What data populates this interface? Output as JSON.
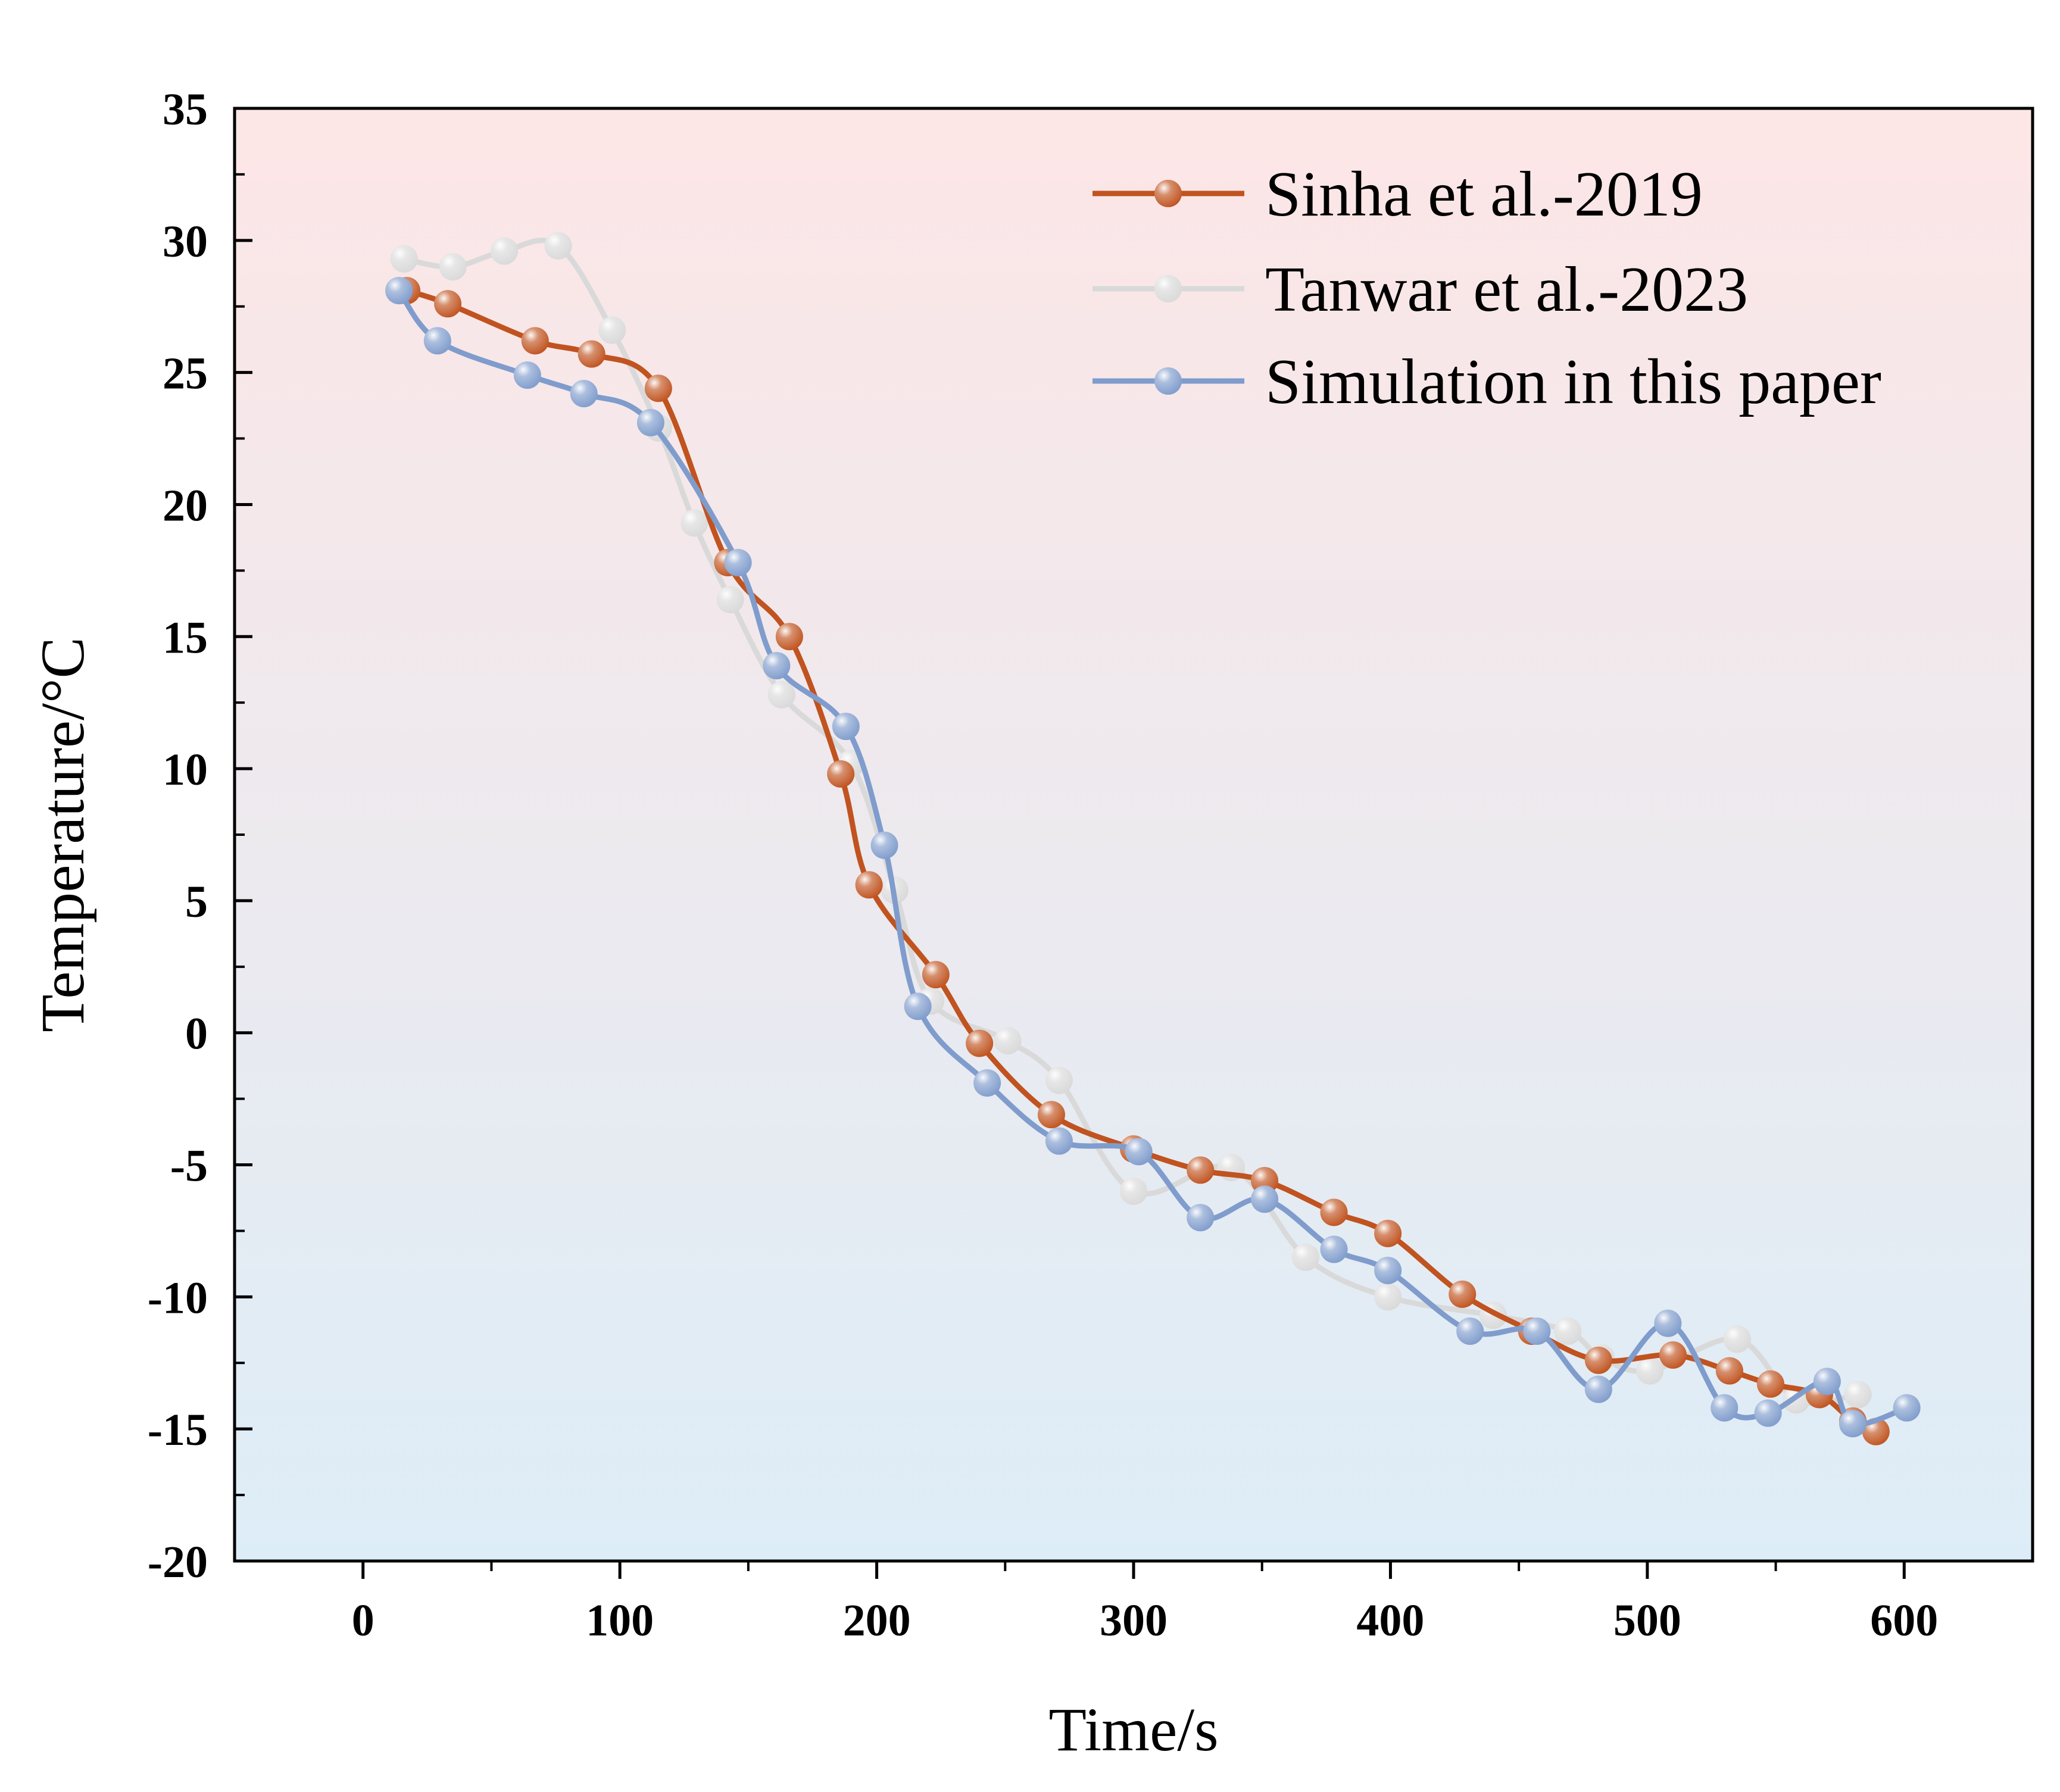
{
  "chart_data": {
    "type": "line",
    "title": "",
    "xlabel": "Time/s",
    "ylabel": "Temperature/°C",
    "xlim": [
      -50,
      650
    ],
    "ylim": [
      -20,
      35
    ],
    "xticks": [
      0,
      100,
      200,
      300,
      400,
      500,
      600
    ],
    "xtick_labels": [
      "0",
      "100",
      "200",
      "300",
      "400",
      "500",
      "600"
    ],
    "yticks": [
      35,
      30,
      25,
      20,
      15,
      10,
      5,
      0,
      -5,
      -10,
      -15,
      -20
    ],
    "ytick_labels": [
      "35",
      "30",
      "25",
      "20",
      "15",
      "10",
      "5",
      "0",
      "-5",
      "-10",
      "-15",
      "-20"
    ],
    "grid": false,
    "legend_position": "top-right",
    "background_gradient": [
      "#fde6e6",
      "#ddedf7"
    ],
    "series": [
      {
        "name": "Sinha et al.-2019",
        "color": "#c0531f",
        "x": [
          17,
          33,
          67,
          89,
          115,
          142,
          166,
          186,
          197,
          223,
          240,
          268,
          300,
          326,
          351,
          378,
          399,
          428,
          455,
          481,
          510,
          532,
          548,
          567,
          580,
          589
        ],
        "y": [
          28.1,
          27.6,
          26.2,
          25.7,
          24.4,
          17.8,
          15.0,
          9.8,
          5.6,
          2.2,
          -0.4,
          -3.1,
          -4.4,
          -5.2,
          -5.6,
          -6.8,
          -7.6,
          -9.9,
          -11.3,
          -12.4,
          -12.2,
          -12.8,
          -13.3,
          -13.7,
          -14.7,
          -15.1
        ]
      },
      {
        "name": "Tanwar et al.-2023",
        "color": "#d9d9d9",
        "x": [
          16,
          35,
          55,
          76,
          97,
          115,
          129,
          143,
          163,
          190,
          207,
          221,
          251,
          271,
          300,
          338,
          367,
          399,
          440,
          469,
          482,
          501,
          535,
          558,
          582
        ],
        "y": [
          29.3,
          29.0,
          29.6,
          29.8,
          26.6,
          22.9,
          19.3,
          16.4,
          12.8,
          10.2,
          5.4,
          1.2,
          -0.3,
          -1.8,
          -6.0,
          -5.1,
          -8.5,
          -10.0,
          -10.7,
          -11.3,
          -12.3,
          -12.8,
          -11.6,
          -13.9,
          -13.7
        ]
      },
      {
        "name": "Simulation in this paper",
        "color": "#7f9ccc",
        "x": [
          14,
          29,
          64,
          86,
          112,
          146,
          161,
          188,
          203,
          216,
          243,
          271,
          302,
          326,
          351,
          378,
          399,
          431,
          457,
          481,
          508,
          530,
          547,
          570,
          580,
          601
        ],
        "y": [
          28.1,
          26.2,
          24.9,
          24.2,
          23.1,
          17.8,
          13.9,
          11.6,
          7.1,
          1.0,
          -1.9,
          -4.1,
          -4.5,
          -7.0,
          -6.3,
          -8.2,
          -9.0,
          -11.3,
          -11.3,
          -13.5,
          -11.0,
          -14.2,
          -14.4,
          -13.2,
          -14.8,
          -14.2
        ]
      }
    ]
  }
}
